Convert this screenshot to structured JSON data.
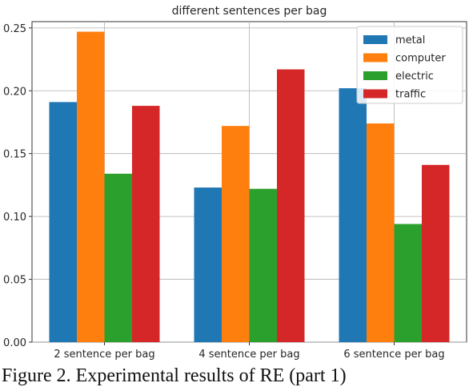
{
  "caption": "Figure 2. Experimental results of RE (part 1)",
  "chart_data": {
    "type": "bar",
    "title": "different sentences per bag",
    "xlabel": "",
    "ylabel": "",
    "categories": [
      "2 sentence per bag",
      "4 sentence per bag",
      "6 sentence per bag"
    ],
    "series": [
      {
        "name": "metal",
        "color": "#1f77b4",
        "values": [
          0.191,
          0.123,
          0.202
        ]
      },
      {
        "name": "computer",
        "color": "#ff7f0e",
        "values": [
          0.247,
          0.172,
          0.174
        ]
      },
      {
        "name": "electric",
        "color": "#2ca02c",
        "values": [
          0.134,
          0.122,
          0.094
        ]
      },
      {
        "name": "traffic",
        "color": "#d62728",
        "values": [
          0.188,
          0.217,
          0.141
        ]
      }
    ],
    "ylim": [
      0,
      0.255
    ],
    "yticks": [
      "0.00",
      "0.05",
      "0.10",
      "0.15",
      "0.20",
      "0.25"
    ],
    "grid": true,
    "legend": "top-right"
  }
}
